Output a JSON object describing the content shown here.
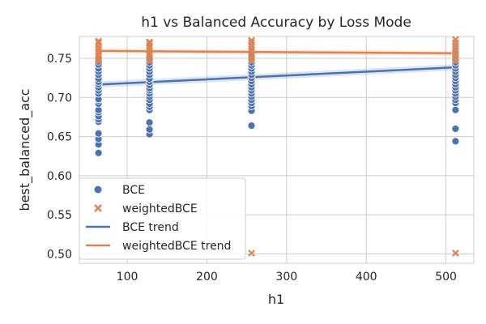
{
  "chart_data": {
    "type": "scatter",
    "title": "h1 vs Balanced Accuracy by Loss Mode",
    "xlabel": "h1",
    "ylabel": "best_balanced_acc",
    "xlim": [
      40,
      535
    ],
    "ylim": [
      0.488,
      0.778
    ],
    "xticks": [
      "100",
      "200",
      "300",
      "400",
      "500"
    ],
    "yticks": [
      "0.50",
      "0.55",
      "0.60",
      "0.65",
      "0.70",
      "0.75"
    ],
    "grid": true,
    "legend_position": "lower-left",
    "colors": {
      "BCE": "#4c72b0",
      "weightedBCE": "#dd8452"
    },
    "series": [
      {
        "name": "BCE",
        "marker": "circle",
        "points": [
          [
            64,
            0.629
          ],
          [
            64,
            0.64
          ],
          [
            64,
            0.647
          ],
          [
            64,
            0.654
          ],
          [
            64,
            0.669
          ],
          [
            64,
            0.672
          ],
          [
            64,
            0.676
          ],
          [
            64,
            0.681
          ],
          [
            64,
            0.684
          ],
          [
            64,
            0.692
          ],
          [
            64,
            0.696
          ],
          [
            64,
            0.698
          ],
          [
            64,
            0.705
          ],
          [
            64,
            0.709
          ],
          [
            64,
            0.713
          ],
          [
            64,
            0.717
          ],
          [
            64,
            0.72
          ],
          [
            64,
            0.724
          ],
          [
            64,
            0.729
          ],
          [
            64,
            0.733
          ],
          [
            64,
            0.737
          ],
          [
            64,
            0.742
          ],
          [
            64,
            0.746
          ],
          [
            64,
            0.75
          ],
          [
            128,
            0.653
          ],
          [
            128,
            0.659
          ],
          [
            128,
            0.668
          ],
          [
            128,
            0.684
          ],
          [
            128,
            0.688
          ],
          [
            128,
            0.692
          ],
          [
            128,
            0.697
          ],
          [
            128,
            0.701
          ],
          [
            128,
            0.705
          ],
          [
            128,
            0.709
          ],
          [
            128,
            0.712
          ],
          [
            128,
            0.716
          ],
          [
            128,
            0.72
          ],
          [
            128,
            0.724
          ],
          [
            128,
            0.729
          ],
          [
            128,
            0.733
          ],
          [
            128,
            0.737
          ],
          [
            128,
            0.741
          ],
          [
            128,
            0.745
          ],
          [
            128,
            0.749
          ],
          [
            256,
            0.664
          ],
          [
            256,
            0.683
          ],
          [
            256,
            0.689
          ],
          [
            256,
            0.693
          ],
          [
            256,
            0.697
          ],
          [
            256,
            0.701
          ],
          [
            256,
            0.705
          ],
          [
            256,
            0.709
          ],
          [
            256,
            0.713
          ],
          [
            256,
            0.717
          ],
          [
            256,
            0.721
          ],
          [
            256,
            0.725
          ],
          [
            256,
            0.729
          ],
          [
            256,
            0.733
          ],
          [
            256,
            0.737
          ],
          [
            256,
            0.741
          ],
          [
            256,
            0.745
          ],
          [
            256,
            0.749
          ],
          [
            256,
            0.752
          ],
          [
            512,
            0.644
          ],
          [
            512,
            0.66
          ],
          [
            512,
            0.684
          ],
          [
            512,
            0.693
          ],
          [
            512,
            0.697
          ],
          [
            512,
            0.701
          ],
          [
            512,
            0.705
          ],
          [
            512,
            0.709
          ],
          [
            512,
            0.713
          ],
          [
            512,
            0.717
          ],
          [
            512,
            0.721
          ],
          [
            512,
            0.725
          ],
          [
            512,
            0.729
          ],
          [
            512,
            0.733
          ],
          [
            512,
            0.737
          ],
          [
            512,
            0.741
          ],
          [
            512,
            0.745
          ],
          [
            512,
            0.749
          ],
          [
            512,
            0.753
          ],
          [
            512,
            0.757
          ]
        ]
      },
      {
        "name": "weightedBCE",
        "marker": "x",
        "points": [
          [
            64,
            0.746
          ],
          [
            64,
            0.75
          ],
          [
            64,
            0.754
          ],
          [
            64,
            0.758
          ],
          [
            64,
            0.762
          ],
          [
            64,
            0.766
          ],
          [
            64,
            0.77
          ],
          [
            64,
            0.772
          ],
          [
            128,
            0.746
          ],
          [
            128,
            0.75
          ],
          [
            128,
            0.754
          ],
          [
            128,
            0.757
          ],
          [
            128,
            0.76
          ],
          [
            128,
            0.763
          ],
          [
            128,
            0.766
          ],
          [
            128,
            0.769
          ],
          [
            128,
            0.771
          ],
          [
            256,
            0.501
          ],
          [
            256,
            0.746
          ],
          [
            256,
            0.75
          ],
          [
            256,
            0.754
          ],
          [
            256,
            0.758
          ],
          [
            256,
            0.762
          ],
          [
            256,
            0.766
          ],
          [
            256,
            0.77
          ],
          [
            256,
            0.773
          ],
          [
            512,
            0.501
          ],
          [
            512,
            0.746
          ],
          [
            512,
            0.75
          ],
          [
            512,
            0.754
          ],
          [
            512,
            0.758
          ],
          [
            512,
            0.762
          ],
          [
            512,
            0.766
          ],
          [
            512,
            0.77
          ],
          [
            512,
            0.774
          ]
        ]
      }
    ],
    "trends": [
      {
        "name": "BCE trend",
        "x": [
          64,
          512
        ],
        "y": [
          0.7165,
          0.7385
        ],
        "ci": 0.004
      },
      {
        "name": "weightedBCE trend",
        "x": [
          64,
          512
        ],
        "y": [
          0.7595,
          0.7565
        ],
        "ci": 0.003
      }
    ]
  }
}
